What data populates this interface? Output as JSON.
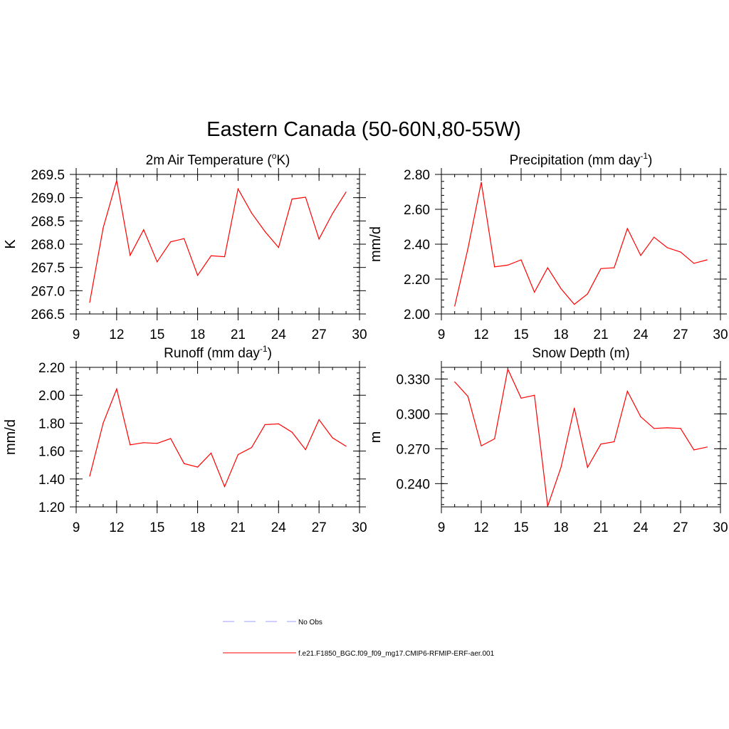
{
  "figure": {
    "title": "Eastern Canada (50-60N,80-55W)"
  },
  "legend": {
    "entries": [
      {
        "label": "No Obs",
        "color": "#9f9fff",
        "dash": "dashed"
      },
      {
        "label": "f.e21.F1850_BGC.f09_f09_mg17.CMIP6-RFMIP-ERF-aer.001",
        "color": "#ff0000",
        "dash": "solid"
      }
    ]
  },
  "chart_data": [
    {
      "type": "line",
      "title": "2m Air Temperature (°K)",
      "title_main": "2m Air Temperature (",
      "title_sup": "o",
      "title_end": "K)",
      "ylabel": "K",
      "xlim": [
        9,
        30
      ],
      "ylim": [
        266.5,
        269.5
      ],
      "xticks": [
        9,
        12,
        15,
        18,
        21,
        24,
        27,
        30
      ],
      "yticks": [
        266.5,
        267.0,
        267.5,
        268.0,
        268.5,
        269.0,
        269.5
      ],
      "ytick_labels": [
        "266.5",
        "267.0",
        "267.5",
        "268.0",
        "268.5",
        "269.0",
        "269.5"
      ],
      "x": [
        10,
        11,
        12,
        13,
        14,
        15,
        16,
        17,
        18,
        19,
        20,
        21,
        22,
        23,
        24,
        25,
        26,
        27,
        28,
        29
      ],
      "series": [
        {
          "color": "#ff0000",
          "values": [
            266.75,
            268.35,
            269.37,
            267.76,
            268.31,
            267.62,
            268.05,
            268.12,
            267.33,
            267.75,
            267.73,
            269.19,
            268.67,
            268.27,
            267.93,
            268.97,
            269.01,
            268.11,
            268.66,
            269.12
          ]
        }
      ]
    },
    {
      "type": "line",
      "title": "Precipitation (mm day-1)",
      "title_main": "Precipitation (mm day",
      "title_sup": "-1",
      "title_end": ")",
      "ylabel": "mm/d",
      "xlim": [
        9,
        30
      ],
      "ylim": [
        2.0,
        2.8
      ],
      "xticks": [
        9,
        12,
        15,
        18,
        21,
        24,
        27,
        30
      ],
      "yticks": [
        2.0,
        2.2,
        2.4,
        2.6,
        2.8
      ],
      "ytick_labels": [
        "2.00",
        "2.20",
        "2.40",
        "2.60",
        "2.80"
      ],
      "x": [
        10,
        11,
        12,
        13,
        14,
        15,
        16,
        17,
        18,
        19,
        20,
        21,
        22,
        23,
        24,
        25,
        26,
        27,
        28,
        29
      ],
      "series": [
        {
          "color": "#ff0000",
          "values": [
            2.045,
            2.375,
            2.755,
            2.27,
            2.28,
            2.31,
            2.125,
            2.265,
            2.145,
            2.055,
            2.115,
            2.26,
            2.265,
            2.49,
            2.335,
            2.44,
            2.38,
            2.355,
            2.29,
            2.31
          ]
        }
      ]
    },
    {
      "type": "line",
      "title": "Runoff (mm day-1)",
      "title_main": "Runoff (mm day",
      "title_sup": "-1",
      "title_end": ")",
      "ylabel": "mm/d",
      "xlim": [
        9,
        30
      ],
      "ylim": [
        1.2,
        2.2
      ],
      "xticks": [
        9,
        12,
        15,
        18,
        21,
        24,
        27,
        30
      ],
      "yticks": [
        1.2,
        1.4,
        1.6,
        1.8,
        2.0,
        2.2
      ],
      "ytick_labels": [
        "1.20",
        "1.40",
        "1.60",
        "1.80",
        "2.00",
        "2.20"
      ],
      "x": [
        10,
        11,
        12,
        13,
        14,
        15,
        16,
        17,
        18,
        19,
        20,
        21,
        22,
        23,
        24,
        25,
        26,
        27,
        28,
        29
      ],
      "series": [
        {
          "color": "#ff0000",
          "values": [
            1.42,
            1.8,
            2.045,
            1.645,
            1.66,
            1.655,
            1.69,
            1.51,
            1.485,
            1.585,
            1.345,
            1.575,
            1.625,
            1.79,
            1.795,
            1.735,
            1.61,
            1.825,
            1.695,
            1.635
          ]
        }
      ]
    },
    {
      "type": "line",
      "title": "Snow Depth (m)",
      "title_main": "Snow Depth (m)",
      "title_sup": "",
      "title_end": "",
      "ylabel": "m",
      "xlim": [
        9,
        30
      ],
      "ylim": [
        0.22,
        0.34
      ],
      "xticks": [
        9,
        12,
        15,
        18,
        21,
        24,
        27,
        30
      ],
      "yticks": [
        0.24,
        0.27,
        0.3,
        0.33
      ],
      "ytick_labels": [
        "0.240",
        "0.270",
        "0.300",
        "0.330"
      ],
      "x": [
        10,
        11,
        12,
        13,
        14,
        15,
        16,
        17,
        18,
        19,
        20,
        21,
        22,
        23,
        24,
        25,
        26,
        27,
        28,
        29
      ],
      "series": [
        {
          "color": "#ff0000",
          "values": [
            0.3275,
            0.315,
            0.2725,
            0.2785,
            0.3385,
            0.3135,
            0.316,
            0.2205,
            0.254,
            0.305,
            0.254,
            0.274,
            0.276,
            0.3195,
            0.2975,
            0.2875,
            0.288,
            0.2875,
            0.269,
            0.2715
          ]
        }
      ]
    }
  ]
}
